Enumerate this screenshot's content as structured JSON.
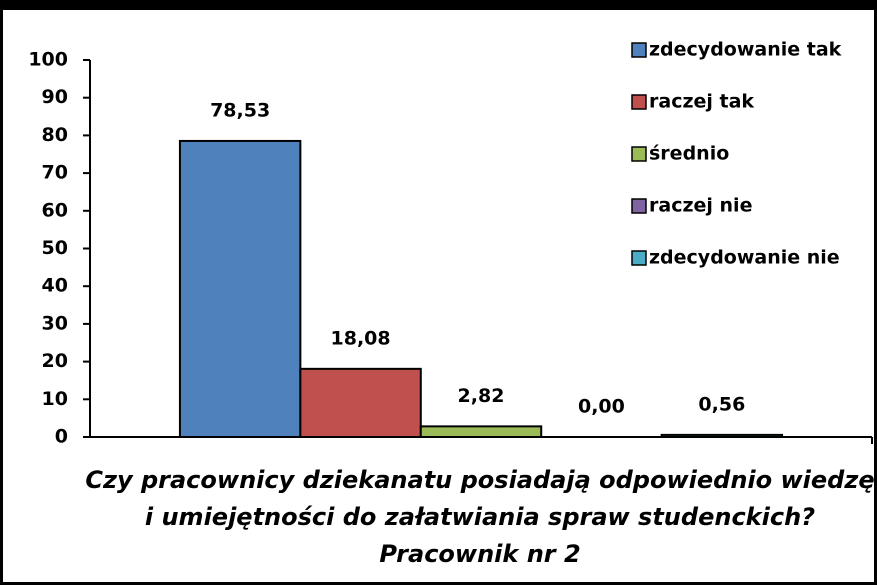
{
  "chart_data": {
    "type": "bar",
    "categories": [
      "Czy pracownicy dziekanatu posiadają odpowiednio wiedzę i umiejętności do załatwiania spraw studenckich? Pracownik nr 2"
    ],
    "series": [
      {
        "name": "zdecydowanie tak",
        "color": "#4f81bd",
        "values": [
          78.53
        ],
        "value_labels": [
          "78,53"
        ]
      },
      {
        "name": "raczej tak",
        "color": "#c0504d",
        "values": [
          18.08
        ],
        "value_labels": [
          "18,08"
        ]
      },
      {
        "name": "średnio",
        "color": "#9bbb59",
        "values": [
          2.82
        ],
        "value_labels": [
          "2,82"
        ]
      },
      {
        "name": "raczej nie",
        "color": "#8064a2",
        "values": [
          0
        ],
        "value_labels": [
          "0,00"
        ]
      },
      {
        "name": "zdecydowanie nie",
        "color": "#4bacc6",
        "values": [
          0.56
        ],
        "value_labels": [
          "0,56"
        ]
      }
    ],
    "ylim": [
      0,
      100
    ],
    "yticks": [
      0,
      10,
      20,
      30,
      40,
      50,
      60,
      70,
      80,
      90,
      100
    ],
    "grid": false,
    "legend": "top-right"
  }
}
